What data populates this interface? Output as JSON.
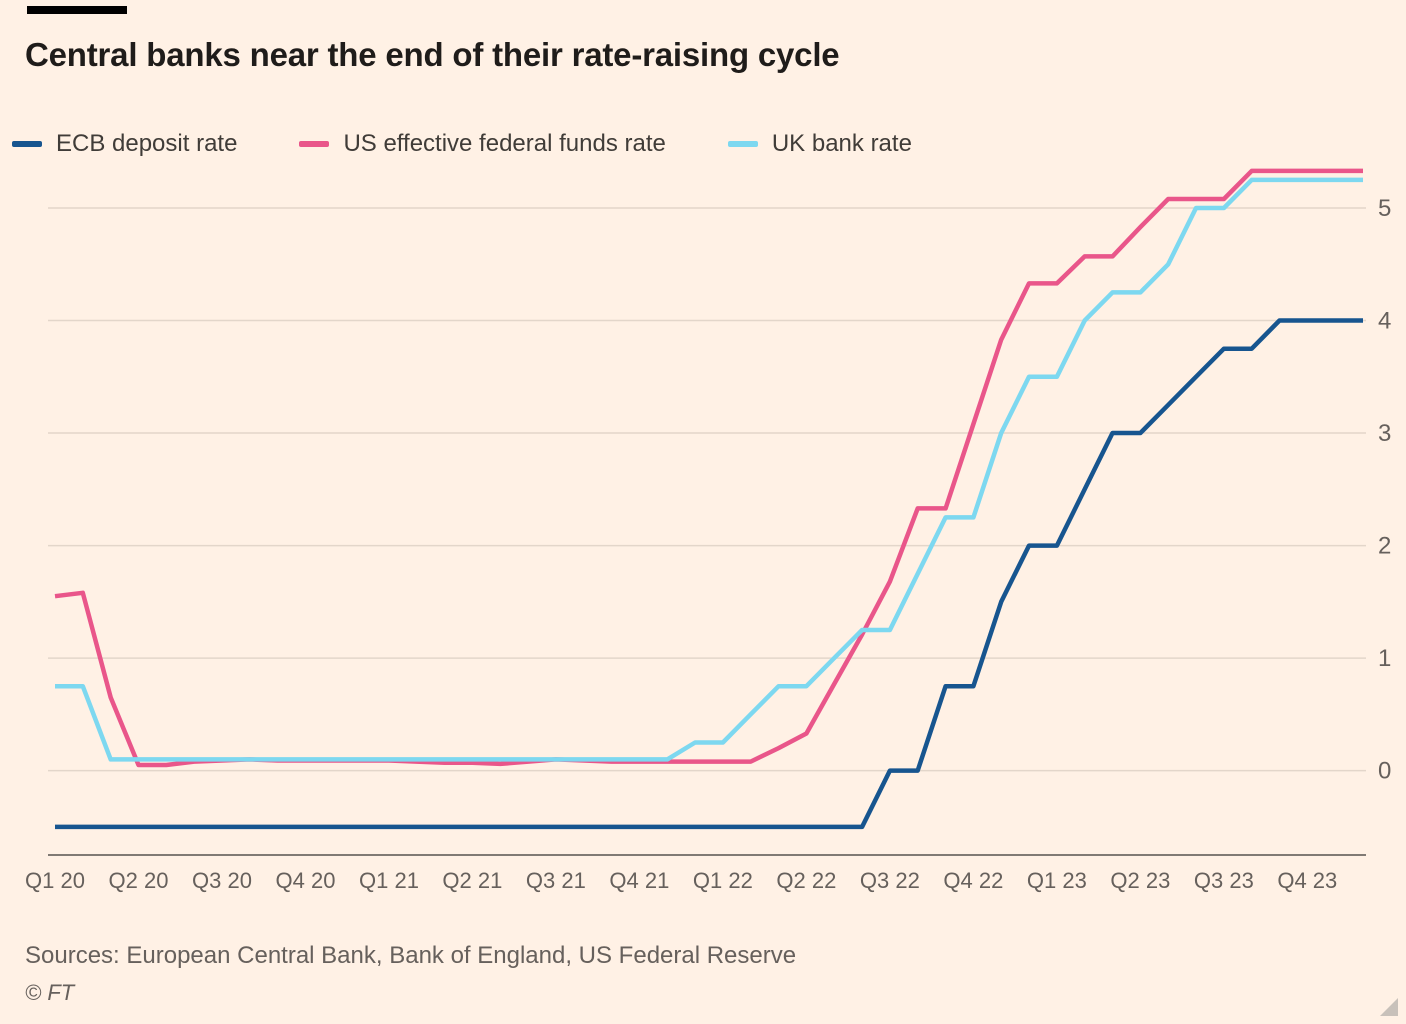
{
  "page": {
    "title": "Central banks near the end of their rate-raising cycle",
    "sources": "Sources: European Central Bank, Bank of England, US Federal Reserve",
    "copyright": "© FT"
  },
  "chart_data": {
    "type": "line",
    "title": "Central banks near the end of their rate-raising cycle",
    "x_unit": "month",
    "x_range": [
      "2020-01",
      "2023-12"
    ],
    "x_tick_labels": [
      "Q1 20",
      "Q2 20",
      "Q3 20",
      "Q4 20",
      "Q1 21",
      "Q2 21",
      "Q3 21",
      "Q4 21",
      "Q1 22",
      "Q2 22",
      "Q3 22",
      "Q4 22",
      "Q1 23",
      "Q2 23",
      "Q3 23",
      "Q4 23"
    ],
    "ylim": [
      -0.75,
      5.4
    ],
    "yticks": [
      0,
      1,
      2,
      3,
      4,
      5
    ],
    "grid": true,
    "legend_position": "top",
    "colors": {
      "background": "#fff1e5",
      "grid": "#e3d6ca",
      "axis": "#57524e",
      "tick_text": "#66605c"
    },
    "series": [
      {
        "id": "ecb",
        "name": "ECB deposit rate",
        "color": "#17558f",
        "values": [
          -0.5,
          -0.5,
          -0.5,
          -0.5,
          -0.5,
          -0.5,
          -0.5,
          -0.5,
          -0.5,
          -0.5,
          -0.5,
          -0.5,
          -0.5,
          -0.5,
          -0.5,
          -0.5,
          -0.5,
          -0.5,
          -0.5,
          -0.5,
          -0.5,
          -0.5,
          -0.5,
          -0.5,
          -0.5,
          -0.5,
          -0.5,
          -0.5,
          -0.5,
          -0.5,
          0,
          0,
          0.75,
          0.75,
          1.5,
          2.0,
          2.0,
          2.5,
          3.0,
          3.0,
          3.25,
          3.5,
          3.75,
          3.75,
          4.0,
          4.0,
          4.0,
          4.0
        ]
      },
      {
        "id": "us",
        "name": "US effective federal funds rate",
        "color": "#e9568a",
        "values": [
          1.55,
          1.58,
          0.65,
          0.05,
          0.05,
          0.08,
          0.09,
          0.1,
          0.09,
          0.09,
          0.09,
          0.09,
          0.09,
          0.08,
          0.07,
          0.07,
          0.06,
          0.08,
          0.1,
          0.09,
          0.08,
          0.08,
          0.08,
          0.08,
          0.08,
          0.08,
          0.2,
          0.33,
          0.77,
          1.21,
          1.68,
          2.33,
          2.33,
          3.08,
          3.83,
          4.33,
          4.33,
          4.57,
          4.57,
          4.83,
          5.08,
          5.08,
          5.08,
          5.33,
          5.33,
          5.33,
          5.33,
          5.33
        ]
      },
      {
        "id": "uk",
        "name": "UK bank rate",
        "color": "#7dd8f0",
        "values": [
          0.75,
          0.75,
          0.1,
          0.1,
          0.1,
          0.1,
          0.1,
          0.1,
          0.1,
          0.1,
          0.1,
          0.1,
          0.1,
          0.1,
          0.1,
          0.1,
          0.1,
          0.1,
          0.1,
          0.1,
          0.1,
          0.1,
          0.1,
          0.25,
          0.25,
          0.5,
          0.75,
          0.75,
          1.0,
          1.25,
          1.25,
          1.75,
          2.25,
          2.25,
          3.0,
          3.5,
          3.5,
          4.0,
          4.25,
          4.25,
          4.5,
          5.0,
          5.0,
          5.25,
          5.25,
          5.25,
          5.25,
          5.25
        ]
      }
    ]
  }
}
